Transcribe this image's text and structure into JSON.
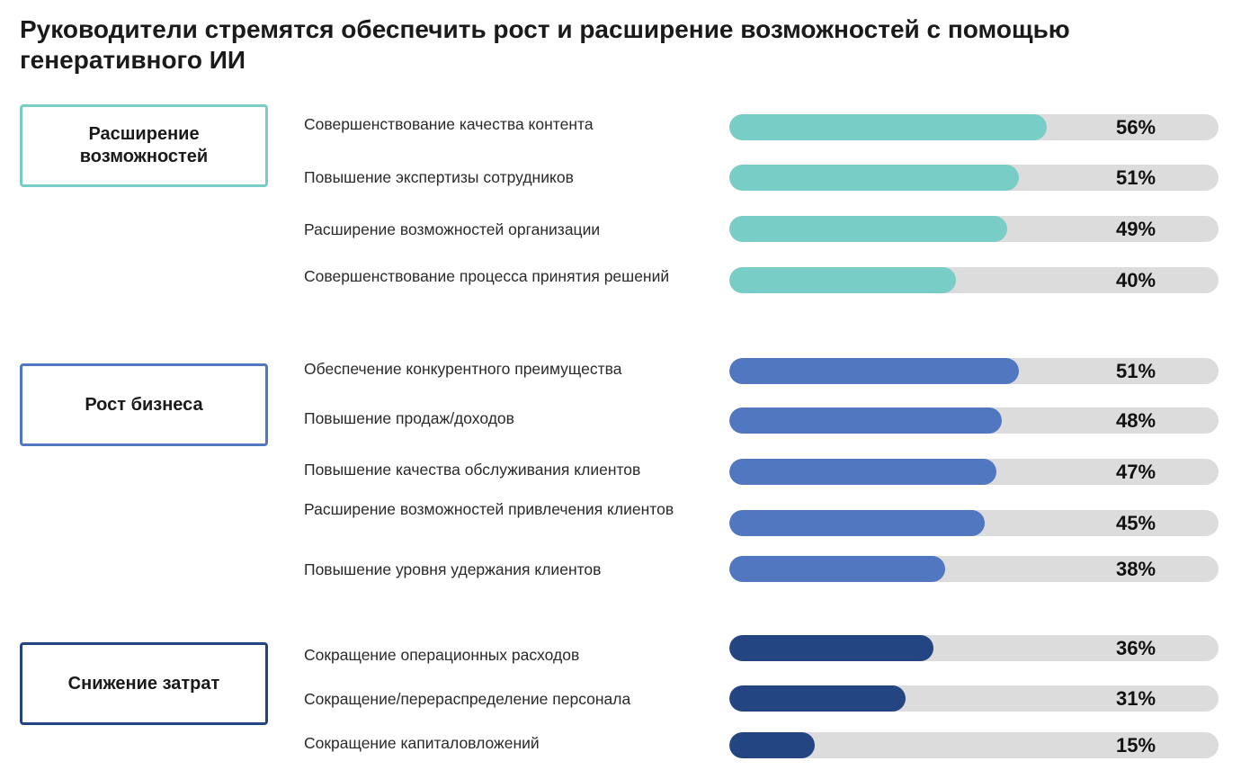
{
  "title": "Руководители стремятся обеспечить рост и расширение возможностей с помощью генеративного ИИ",
  "chart_data": {
    "type": "bar",
    "orientation": "horizontal",
    "title": "Руководители стремятся обеспечить рост и расширение возможностей с помощью генеративного ИИ",
    "xlim": [
      0,
      100
    ],
    "unit": "%",
    "groups": [
      {
        "name": "Расширение возможностей",
        "color": "#79cdc7",
        "categories": [
          "Совершенствование качества контента",
          "Повышение экспертизы сотрудников",
          "Расширение возможностей организации",
          "Совершенствование процесса принятия решений"
        ],
        "values": [
          56,
          51,
          49,
          40
        ],
        "labels": [
          "56%",
          "51%",
          "49%",
          "40%"
        ]
      },
      {
        "name": "Рост бизнеса",
        "color": "#5177c0",
        "categories": [
          "Обеспечение конкурентного преимущества",
          "Повышение продаж/доходов",
          "Повышение качества обслуживания клиентов",
          "Расширение возможностей привлечения клиентов",
          "Повышение уровня удержания клиентов"
        ],
        "values": [
          51,
          48,
          47,
          45,
          38
        ],
        "labels": [
          "51%",
          "48%",
          "47%",
          "45%",
          "38%"
        ]
      },
      {
        "name": "Снижение затрат",
        "color": "#234683",
        "categories": [
          "Сокращение операционных расходов",
          "Сокращение/перераспределение персонала",
          "Сокращение капиталовложений"
        ],
        "values": [
          36,
          31,
          15
        ],
        "labels": [
          "36%",
          "31%",
          "15%"
        ]
      }
    ]
  }
}
